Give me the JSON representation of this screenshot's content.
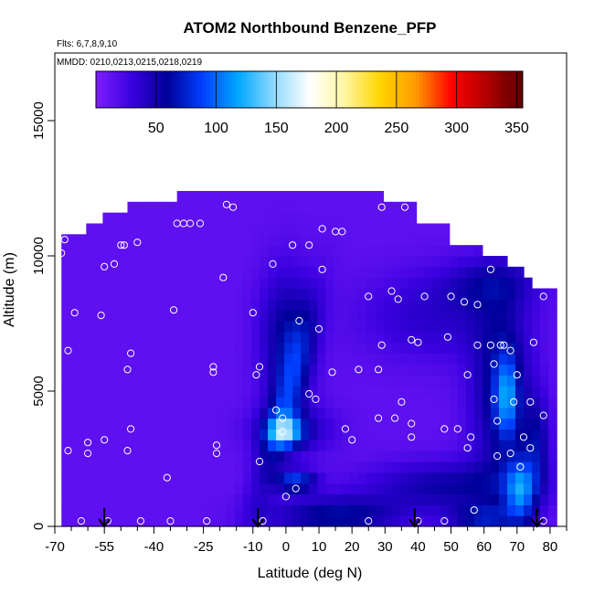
{
  "chart_data": {
    "type": "heatmap",
    "title": "ATOM2 Northbound Benzene_PFP",
    "flights_label": "Flts: 6,7,8,9,10",
    "dates_label": "MMDD: 0210,0213,0215,0218,0219",
    "xlabel": "Latitude (deg N)",
    "ylabel": "Altitude (m)",
    "xlim": [
      -70,
      85
    ],
    "ylim": [
      0,
      17500
    ],
    "x_ticks": [
      -70,
      -55,
      -40,
      -25,
      -10,
      0,
      10,
      20,
      30,
      40,
      50,
      60,
      70,
      80
    ],
    "x_tick_labels": [
      "-70",
      "-55",
      "-40",
      "-25",
      "-10",
      "0",
      "10",
      "20",
      "30",
      "40",
      "50",
      "60",
      "70",
      "80"
    ],
    "x_minor_ticks": [
      -65,
      -60,
      -50,
      -45,
      -35,
      -30,
      -20,
      -15,
      -5,
      5,
      15,
      25,
      35,
      45,
      55,
      65,
      75,
      85
    ],
    "y_ticks": [
      0,
      5000,
      10000,
      15000
    ],
    "y_tick_labels": [
      "0",
      "5000",
      "10000",
      "15000"
    ],
    "colorbar": {
      "range": [
        0,
        355
      ],
      "tick_values": [
        50,
        100,
        150,
        200,
        250,
        300,
        350
      ],
      "tick_labels": [
        "50",
        "100",
        "150",
        "200",
        "250",
        "300",
        "350"
      ],
      "stops": [
        "#7f1fff",
        "#3a00e0",
        "#00009a",
        "#0040ff",
        "#00a8ff",
        "#8fd8ff",
        "#ffffff",
        "#fff6a0",
        "#ffd400",
        "#ff9a00",
        "#ff0000",
        "#b00000",
        "#5a0000"
      ]
    },
    "arrow_latitudes": [
      -55,
      -8.5,
      39,
      76
    ],
    "grid_cell": {
      "dx": 2.5,
      "dy": 400
    },
    "sample_points": [
      [
        -67,
        11000
      ],
      [
        -67,
        10600
      ],
      [
        -68,
        10100
      ],
      [
        -66,
        6500
      ],
      [
        -64,
        7900
      ],
      [
        -60,
        3100
      ],
      [
        -66,
        2800
      ],
      [
        -60,
        2700
      ],
      [
        -55,
        3200
      ],
      [
        -62,
        200
      ],
      [
        -54,
        200
      ],
      [
        -56,
        7800
      ],
      [
        -55,
        9600
      ],
      [
        -52,
        9700
      ],
      [
        -50,
        10400
      ],
      [
        -49,
        10400
      ],
      [
        -45,
        10500
      ],
      [
        -47,
        6400
      ],
      [
        -48,
        5800
      ],
      [
        -47,
        3600
      ],
      [
        -48,
        2800
      ],
      [
        -44,
        200
      ],
      [
        -36,
        1800
      ],
      [
        -35,
        200
      ],
      [
        -34,
        8000
      ],
      [
        -33,
        11200
      ],
      [
        -31,
        11200
      ],
      [
        -29,
        11200
      ],
      [
        -26,
        11200
      ],
      [
        -24,
        200
      ],
      [
        -22,
        5700
      ],
      [
        -22,
        5900
      ],
      [
        -21,
        3000
      ],
      [
        -21,
        2700
      ],
      [
        -19,
        9200
      ],
      [
        -18,
        11900
      ],
      [
        -16,
        11800
      ],
      [
        -10,
        7900
      ],
      [
        -9,
        5600
      ],
      [
        -8,
        5900
      ],
      [
        -8,
        2400
      ],
      [
        -7,
        200
      ],
      [
        -4,
        9700
      ],
      [
        -3,
        4300
      ],
      [
        -1,
        4000
      ],
      [
        -1,
        3500
      ],
      [
        0,
        1100
      ],
      [
        3,
        1400
      ],
      [
        2,
        10400
      ],
      [
        7,
        10400
      ],
      [
        4,
        7600
      ],
      [
        7,
        4900
      ],
      [
        10,
        7300
      ],
      [
        9,
        4700
      ],
      [
        11,
        9500
      ],
      [
        11,
        11000
      ],
      [
        15,
        10900
      ],
      [
        14,
        5700
      ],
      [
        17,
        10900
      ],
      [
        18,
        3600
      ],
      [
        20,
        3200
      ],
      [
        22,
        5800
      ],
      [
        25,
        8500
      ],
      [
        25,
        200
      ],
      [
        28,
        5800
      ],
      [
        28,
        4000
      ],
      [
        29,
        6700
      ],
      [
        29,
        11800
      ],
      [
        32,
        8700
      ],
      [
        33,
        4000
      ],
      [
        34,
        8400
      ],
      [
        35,
        4600
      ],
      [
        36,
        11800
      ],
      [
        38,
        6900
      ],
      [
        38,
        3800
      ],
      [
        38,
        3300
      ],
      [
        40,
        6800
      ],
      [
        42,
        8500
      ],
      [
        40,
        200
      ],
      [
        48,
        200
      ],
      [
        48,
        3600
      ],
      [
        49,
        7000
      ],
      [
        50,
        8500
      ],
      [
        52,
        3600
      ],
      [
        54,
        8300
      ],
      [
        55,
        5600
      ],
      [
        55,
        2900
      ],
      [
        56,
        3300
      ],
      [
        57,
        600
      ],
      [
        58,
        6700
      ],
      [
        58,
        8200
      ],
      [
        62,
        9500
      ],
      [
        62,
        6700
      ],
      [
        63,
        6000
      ],
      [
        63,
        4700
      ],
      [
        64,
        2600
      ],
      [
        64,
        3900
      ],
      [
        65,
        6700
      ],
      [
        66,
        6700
      ],
      [
        68,
        6500
      ],
      [
        68,
        2700
      ],
      [
        69,
        4600
      ],
      [
        70,
        5600
      ],
      [
        71,
        2200
      ],
      [
        72,
        3300
      ],
      [
        74,
        2900
      ],
      [
        74,
        4600
      ],
      [
        75,
        6800
      ],
      [
        78,
        8500
      ],
      [
        78,
        4100
      ],
      [
        78,
        200
      ]
    ]
  }
}
